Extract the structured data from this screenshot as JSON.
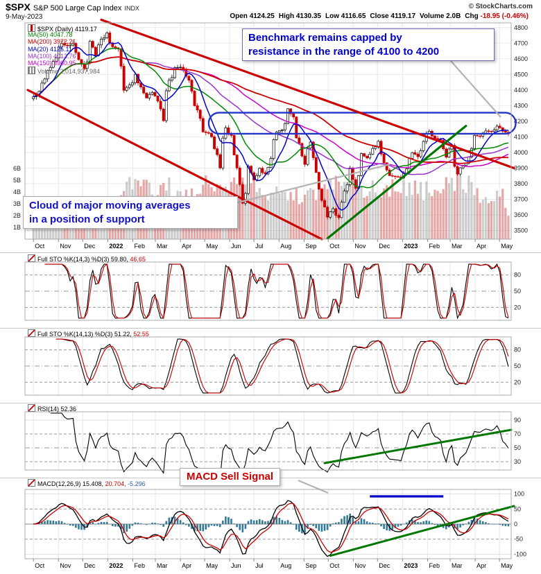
{
  "header": {
    "symbol": "$SPX",
    "name": "S&P 500 Large Cap Index",
    "exchange": "INDX",
    "copyright": "© StockCharts.com",
    "date": "9-May-2023",
    "quote": [
      {
        "label": "Open",
        "value": "4124.25"
      },
      {
        "label": "High",
        "value": "4130.35"
      },
      {
        "label": "Low",
        "value": "4116.65"
      },
      {
        "label": "Close",
        "value": "4119.17"
      },
      {
        "label": "Volume",
        "value": "2.0B"
      },
      {
        "label": "Chg",
        "value": "-18.95 (-0.46%)",
        "negative": true
      }
    ]
  },
  "annotations": {
    "benchmark": {
      "lines": [
        "Benchmark remains capped by",
        "resistance in the range of 4100 to 4200"
      ],
      "color": "#0000cc"
    },
    "cloud": {
      "lines": [
        "Cloud of major moving averages",
        "in a position of support"
      ],
      "color": "#1111cc"
    },
    "macd_sell": {
      "text": "MACD Sell Signal",
      "color": "#cc0000"
    }
  },
  "chart_data": [
    {
      "type": "candlestick",
      "panel": "price",
      "title": "$SPX (Daily) 4119.17",
      "x_start": "2021-10-01",
      "x_interval": "weekly",
      "x_end": "2023-05-09",
      "ylim": [
        3500,
        4800
      ],
      "y_ticks": [
        3500,
        3600,
        3700,
        3800,
        3900,
        4000,
        4100,
        4200,
        4300,
        4400,
        4500,
        4600,
        4700,
        4800
      ],
      "volume_axis": {
        "ticks": [
          6,
          5,
          4,
          3,
          2,
          1
        ],
        "unit": "B"
      },
      "close": [
        4357,
        4391,
        4471,
        4545,
        4605,
        4698,
        4683,
        4698,
        4595,
        4538,
        4712,
        4621,
        4726,
        4766,
        4677,
        4663,
        4398,
        4432,
        4501,
        4419,
        4349,
        4385,
        4329,
        4204,
        4463,
        4543,
        4546,
        4488,
        4393,
        4272,
        4132,
        4123,
        4024,
        3901,
        4158,
        4109,
        3901,
        3675,
        3912,
        3825,
        3899,
        3863,
        3962,
        4130,
        4145,
        4280,
        4228,
        4058,
        3924,
        4067,
        3873,
        3693,
        3586,
        3640,
        3583,
        3753,
        3901,
        3771,
        3993,
        3965,
        4026,
        4072,
        3934,
        3852,
        3845,
        3839,
        3895,
        3999,
        3973,
        4071,
        4136,
        4090,
        4079,
        3970,
        4046,
        3862,
        3917,
        3971,
        4109,
        4105,
        4138,
        4134,
        4169,
        4136,
        4119.17
      ],
      "volume_billions": [
        2.3,
        2.2,
        2.4,
        2.3,
        2.5,
        2.4,
        2.6,
        2.5,
        2.2,
        3.0,
        2.8,
        3.4,
        2.9,
        2.4,
        3.2,
        3.5,
        4.3,
        4.6,
        4.4,
        4.1,
        4.5,
        4.2,
        4.4,
        4.8,
        4.6,
        4.1,
        3.8,
        3.6,
        3.9,
        4.1,
        4.5,
        4.6,
        4.8,
        5.2,
        4.7,
        4.3,
        4.5,
        5.0,
        5.9,
        4.9,
        4.6,
        4.2,
        4.0,
        3.9,
        3.8,
        3.7,
        3.9,
        3.6,
        3.8,
        4.0,
        3.9,
        4.2,
        4.6,
        5.0,
        5.3,
        5.6,
        5.2,
        4.7,
        4.4,
        4.1,
        4.5,
        4.3,
        4.6,
        4.4,
        4.2,
        4.0,
        4.4,
        4.6,
        4.3,
        4.1,
        4.5,
        4.4,
        4.2,
        4.6,
        4.4,
        5.0,
        4.8,
        4.5,
        4.3,
        3.6,
        3.4,
        3.3,
        3.5,
        3.6,
        2.0
      ],
      "last": {
        "open": 4124.25,
        "high": 4130.35,
        "low": 4116.65,
        "close": 4119.17,
        "volume": "2.0B",
        "chg": "-18.95 (-0.46%)"
      },
      "overlays": [
        {
          "name": "MA(20)",
          "value": 4125.11,
          "color": "#0000cc"
        },
        {
          "name": "MA(50)",
          "value": 4047.78,
          "color": "#008800"
        },
        {
          "name": "MA(100)",
          "value": 4013.76,
          "color": "#9933cc"
        },
        {
          "name": "MA(150)",
          "value": 3960.95,
          "color": "#cc00cc"
        },
        {
          "name": "MA(200)",
          "value": 3972.21,
          "color": "#cc0000"
        }
      ],
      "legend": [
        {
          "text": "$SPX (Daily) 4119.17",
          "color": "#000000",
          "icon": "candlestick-icon"
        },
        {
          "text": "MA(50) 4047.78",
          "color": "#008800"
        },
        {
          "text": "MA(200) 3972.21",
          "color": "#cc0000"
        },
        {
          "text": "MA(20) 4125.11",
          "color": "#0000cc"
        },
        {
          "text": "MA(100) 4013.76",
          "color": "#9933cc"
        },
        {
          "text": "MA(150) 3960.95",
          "color": "#cc00cc"
        },
        {
          "text": "Volume 2,014,937,984",
          "color": "#666666",
          "icon": "volume-icon"
        }
      ],
      "colors": {
        "up": "#000000",
        "down": "#cc0000",
        "volume_down": "rgba(205,80,80,0.5)",
        "volume_up": "rgba(130,130,130,0.4)"
      },
      "annotations": {
        "resistance_box": {
          "weeks": [
            31,
            85.3
          ],
          "price_range": [
            4120,
            4255
          ],
          "color": "#2233cc"
        },
        "trendlines": [
          {
            "name": "upper-resistance-line",
            "from": [
              12,
              4850
            ],
            "to": [
              85,
              3900
            ],
            "color": "#cc0000"
          },
          {
            "name": "lower-channel-line",
            "from": [
              -1,
              4400
            ],
            "to": [
              51,
              3445
            ],
            "color": "#cc0000"
          },
          {
            "name": "support-uptrend-line",
            "from": [
              52,
              3450
            ],
            "to": [
              76.5,
              4170
            ],
            "color": "#007700"
          }
        ]
      },
      "months": [
        {
          "label": "Oct",
          "i": 0
        },
        {
          "label": "Nov",
          "i": 4.43
        },
        {
          "label": "Dec",
          "i": 8.71
        },
        {
          "label": "2022",
          "i": 13.14,
          "year": true
        },
        {
          "label": "Feb",
          "i": 17.57
        },
        {
          "label": "Mar",
          "i": 21.57
        },
        {
          "label": "Apr",
          "i": 26
        },
        {
          "label": "May",
          "i": 30.29
        },
        {
          "label": "Jun",
          "i": 34.71
        },
        {
          "label": "Jul",
          "i": 39
        },
        {
          "label": "Aug",
          "i": 43.43
        },
        {
          "label": "Sep",
          "i": 47.86
        },
        {
          "label": "Oct",
          "i": 52.14
        },
        {
          "label": "Nov",
          "i": 56.57
        },
        {
          "label": "Dec",
          "i": 60.86
        },
        {
          "label": "2023",
          "i": 65.29,
          "year": true
        },
        {
          "label": "Feb",
          "i": 69.71
        },
        {
          "label": "Mar",
          "i": 73.71
        },
        {
          "label": "Apr",
          "i": 78.14
        },
        {
          "label": "May",
          "i": 82.43
        }
      ]
    },
    {
      "type": "line",
      "panel": "stochastic-fast",
      "legend": [
        {
          "text": "Full STO %K(14,3) %D(3) 59.80,",
          "color": "#000000",
          "icon": "indicator-icon"
        },
        {
          "text": " 46.65",
          "color": "#cc0000"
        }
      ],
      "params": {
        "lookback": 14,
        "k_smooth": 3,
        "d_smooth": 3
      },
      "current": {
        "k": 59.8,
        "d": 46.65
      },
      "ylim": [
        0,
        100
      ],
      "ticks": [
        {
          "v": 80,
          "style": "dashed"
        },
        {
          "v": 50,
          "style": "dashdot"
        },
        {
          "v": 20,
          "style": "dashed"
        }
      ],
      "series_colors": {
        "k": "#000000",
        "d": "#cc0000"
      },
      "derived_from": "price.close"
    },
    {
      "type": "line",
      "panel": "stochastic-slow",
      "legend": [
        {
          "text": "Full STO %K(14,13) %D(3) 51.22,",
          "color": "#000000",
          "icon": "indicator-icon"
        },
        {
          "text": " 52.55",
          "color": "#cc0000"
        }
      ],
      "params": {
        "lookback": 14,
        "k_smooth": 13,
        "d_smooth": 3
      },
      "current": {
        "k": 51.22,
        "d": 52.55
      },
      "ylim": [
        0,
        100
      ],
      "ticks": [
        {
          "v": 80,
          "style": "dashed"
        },
        {
          "v": 50,
          "style": "dashdot"
        },
        {
          "v": 20,
          "style": "dashed"
        }
      ],
      "series_colors": {
        "k": "#000000",
        "d": "#cc0000"
      },
      "derived_from": "price.close"
    },
    {
      "type": "line",
      "panel": "rsi",
      "legend": [
        {
          "text": "RSI(14) 52.36",
          "color": "#000000",
          "icon": "indicator-icon"
        }
      ],
      "params": {
        "period": 14
      },
      "current": 52.36,
      "ylim": [
        20,
        100
      ],
      "ticks": [
        {
          "v": 90,
          "style": "grid"
        },
        {
          "v": 70,
          "style": "dashed"
        },
        {
          "v": 50,
          "style": "dashdot"
        },
        {
          "v": 30,
          "style": "dashed"
        }
      ],
      "series_colors": {
        "rsi": "#000000"
      },
      "annotations": {
        "trendline": {
          "from": [
            51.5,
            28
          ],
          "to": [
            84.5,
            76
          ],
          "color": "#007700"
        }
      },
      "derived_from": "price.close"
    },
    {
      "type": "line",
      "panel": "macd",
      "legend": [
        {
          "text": "MACD(12,26,9) 15.408,",
          "color": "#000000",
          "icon": "indicator-icon"
        },
        {
          "text": " 20.704,",
          "color": "#cc0000"
        },
        {
          "text": " -5.296",
          "color": "#3355aa"
        }
      ],
      "params": {
        "fast": 12,
        "slow": 26,
        "signal": 9
      },
      "current": {
        "macd": 15.408,
        "signal": 20.704,
        "hist": -5.296
      },
      "ylim": [
        -100,
        100
      ],
      "ticks": [
        {
          "v": 100,
          "style": "grid"
        },
        {
          "v": 50,
          "style": "dashed"
        },
        {
          "v": 0,
          "style": "zero"
        },
        {
          "v": -50,
          "style": "dashed"
        },
        {
          "v": -100,
          "style": "grid"
        }
      ],
      "series_colors": {
        "macd": "#000000",
        "signal": "#cc0000"
      },
      "histogram_color": "#337a99",
      "annotations": {
        "trendline": {
          "from": [
            52.5,
            -105
          ],
          "to": [
            85,
            60
          ],
          "color": "#007700"
        },
        "resistance_segment": {
          "from": [
            59.5,
            92
          ],
          "to": [
            72.5,
            92
          ],
          "color": "#0000cc"
        }
      },
      "derived_from": "price.close"
    }
  ]
}
